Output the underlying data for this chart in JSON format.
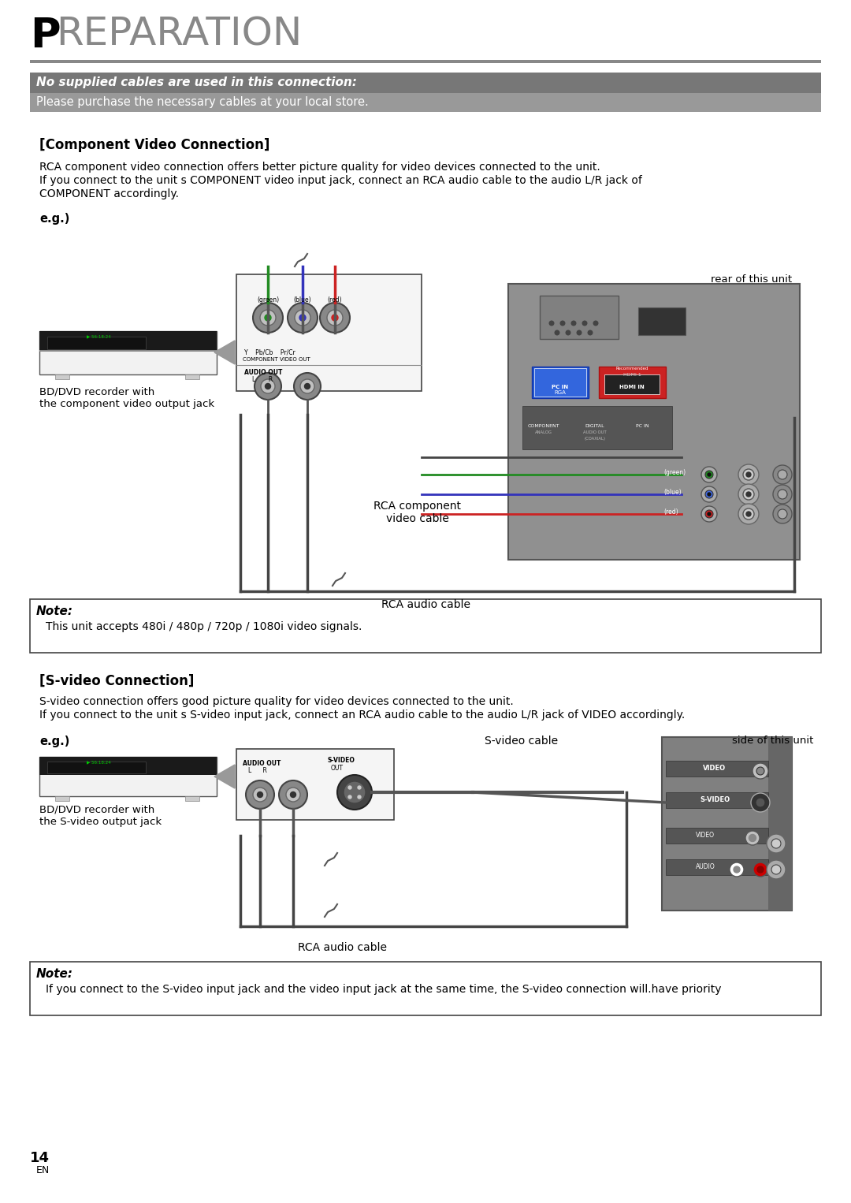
{
  "bg_color": "#ffffff",
  "page_width": 10.8,
  "page_height": 15.26,
  "title_P_color": "#000000",
  "title_text": "REPARATION",
  "title_text_color": "#888888",
  "title_underline_color": "#888888",
  "header_bar1_color": "#777777",
  "header_bar1_text": "No supplied cables are used in this connection:",
  "header_bar1_text_color": "#ffffff",
  "header_bar2_color": "#999999",
  "header_bar2_text": "Please purchase the necessary cables at your local store.",
  "header_bar2_text_color": "#ffffff",
  "section1_title": "[Component Video Connection]",
  "section1_body_line1": "RCA component video connection offers better picture quality for video devices connected to the unit.",
  "section1_body_line2": "If you connect to the unit s COMPONENT video input jack, connect an RCA audio cable to the audio L/R jack of",
  "section1_body_line3": "COMPONENT accordingly.",
  "eg_label": "e.g.)",
  "note1_bold": "Note:",
  "note1_text": "This unit accepts 480i / 480p / 720p / 1080i video signals.",
  "rear_label": "rear of this unit",
  "dvd_label1": "BD/DVD recorder with",
  "dvd_label2": "the component video output jack",
  "rca_component_label1": "RCA component",
  "rca_component_label2": "video cable",
  "rca_audio_label": "RCA audio cable",
  "section2_title": "[S-video Connection]",
  "section2_body_line1": "S-video connection offers good picture quality for video devices connected to the unit.",
  "section2_body_line2": "If you connect to the unit s S-video input jack, connect an RCA audio cable to the audio L/R jack of VIDEO accordingly.",
  "eg2_label": "e.g.)",
  "side_label": "side of this unit",
  "svideo_label": "S-video cable",
  "rca_audio2_label": "RCA audio cable",
  "dvd2_label1": "BD/DVD recorder with",
  "dvd2_label2": "the S-video output jack",
  "note2_bold": "Note:",
  "note2_text": "If you connect to the S-video input jack and the video input jack at the same time, the S-video connection will.have priority",
  "page_num": "14",
  "page_lang": "EN"
}
